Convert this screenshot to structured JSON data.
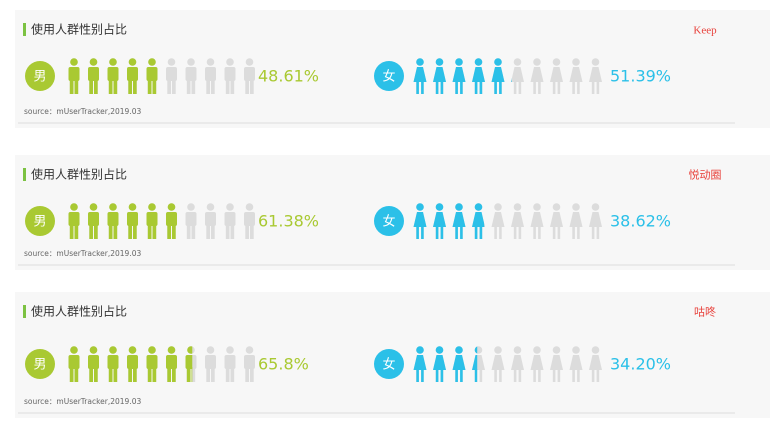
{
  "chart_data": [
    {
      "type": "pictogram",
      "title": "使用人群性别占比",
      "annotation": "Keep",
      "source": "source：mUserTracker,2019.03",
      "categories": [
        "男",
        "女"
      ],
      "values": [
        48.61,
        51.39
      ],
      "value_labels": [
        "48.61%",
        "51.39%"
      ],
      "colors": [
        "#a9c932",
        "#2bc0e8"
      ],
      "xlim": [
        0,
        100
      ]
    },
    {
      "type": "pictogram",
      "title": "使用人群性别占比",
      "annotation": "悦动圈",
      "source": "source：mUserTracker,2019.03",
      "categories": [
        "男",
        "女"
      ],
      "values": [
        61.38,
        38.62
      ],
      "value_labels": [
        "61.38%",
        "38.62%"
      ],
      "colors": [
        "#a9c932",
        "#2bc0e8"
      ],
      "xlim": [
        0,
        100
      ]
    },
    {
      "type": "pictogram",
      "title": "使用人群性别占比",
      "annotation": "咕咚",
      "source": "source：mUserTracker,2019.03",
      "categories": [
        "男",
        "女"
      ],
      "values": [
        65.8,
        34.2
      ],
      "value_labels": [
        "65.8%",
        "34.20%"
      ],
      "colors": [
        "#a9c932",
        "#2bc0e8"
      ],
      "xlim": [
        0,
        100
      ]
    }
  ]
}
